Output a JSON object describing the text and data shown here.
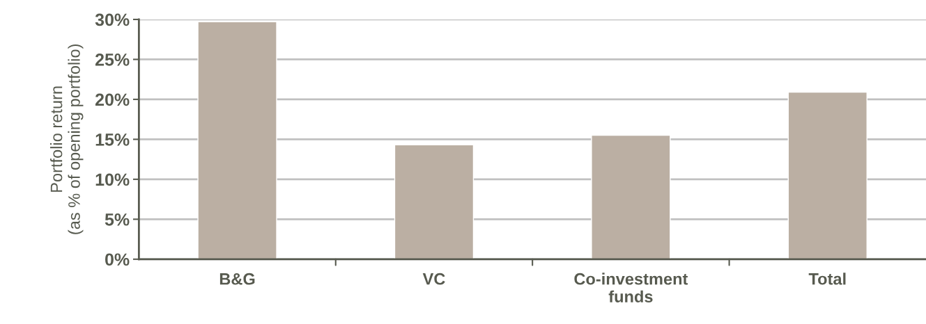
{
  "chart_data": {
    "type": "bar",
    "ylabel": "Portfolio return\n(as % of opening portfolio)",
    "categories": [
      "B&G",
      "VC",
      "Co-investment\nfunds",
      "Total"
    ],
    "values": [
      29.7,
      14.3,
      15.5,
      20.9
    ],
    "color": "#bbafa3",
    "ylim": [
      0,
      30
    ],
    "yticks": [
      {
        "value": 0,
        "label": "0%"
      },
      {
        "value": 5,
        "label": "5%"
      },
      {
        "value": 10,
        "label": "10%"
      },
      {
        "value": 15,
        "label": "15%"
      },
      {
        "value": 20,
        "label": "20%"
      },
      {
        "value": 25,
        "label": "25%"
      },
      {
        "value": 30,
        "label": "30%"
      }
    ],
    "grid": "y"
  }
}
